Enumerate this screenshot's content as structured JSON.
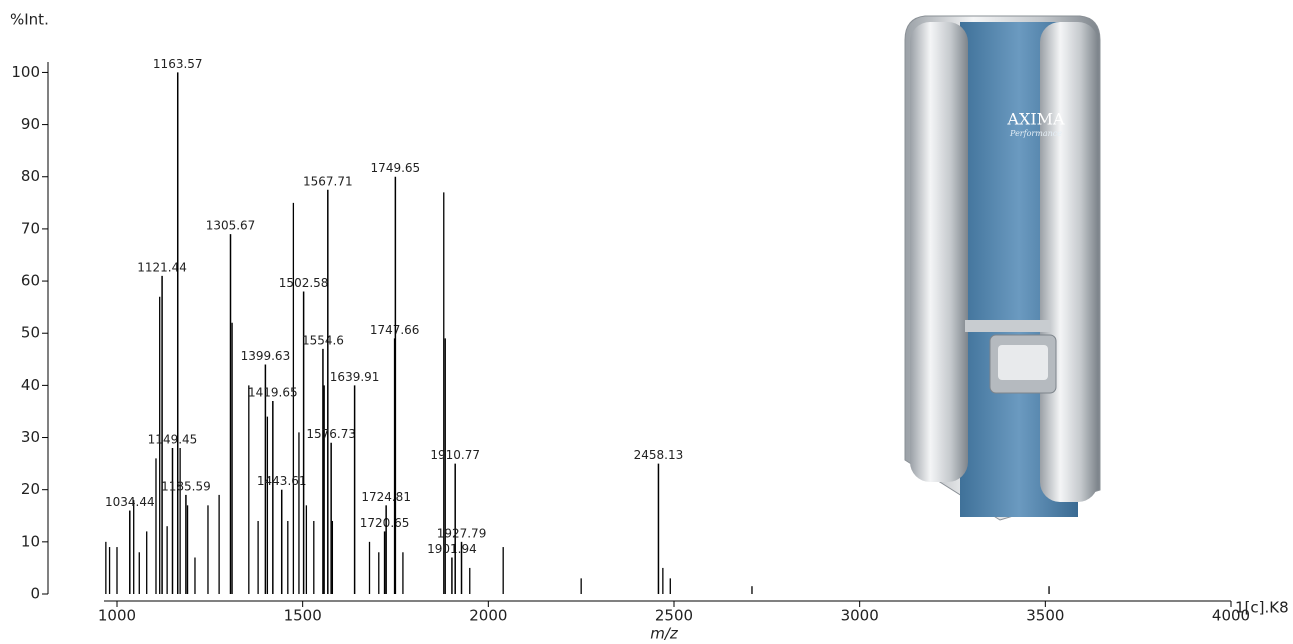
{
  "chart_data": {
    "type": "spectrum",
    "ylabel": "%Int.",
    "xlabel": "m/z",
    "annotation": "1[c].K8",
    "x": [
      1034.44,
      1121.44,
      1149.45,
      1163.57,
      1185.59,
      1305.67,
      1399.63,
      1419.65,
      1443.61,
      1502.58,
      1554.6,
      1567.71,
      1576.73,
      1639.91,
      1720.65,
      1724.81,
      1747.66,
      1749.65,
      1901.94,
      1910.77,
      1927.79,
      2458.13
    ],
    "values": [
      16,
      61,
      28,
      100,
      19,
      69,
      44,
      37,
      20,
      58,
      47,
      77.5,
      29,
      40,
      12,
      17,
      49,
      80,
      7,
      25,
      10,
      25
    ],
    "minor_peaks": {
      "x": [
        970,
        980,
        1000,
        1045,
        1060,
        1080,
        1105,
        1115,
        1135,
        1170,
        1190,
        1210,
        1245,
        1275,
        1310,
        1355,
        1380,
        1405,
        1460,
        1475,
        1490,
        1510,
        1530,
        1558,
        1580,
        1680,
        1705,
        1770,
        1880,
        1884,
        1950,
        2040,
        2250,
        2470,
        2490,
        2710,
        3510
      ],
      "values": [
        10,
        9,
        9,
        18,
        8,
        12,
        26,
        57,
        13,
        28,
        17,
        7,
        17,
        19,
        52,
        40,
        14,
        34,
        14,
        75,
        31,
        17,
        14,
        40,
        14,
        10,
        8,
        8,
        77,
        49,
        5,
        9,
        3,
        5,
        3,
        1.5,
        1.5
      ]
    },
    "color": "#000000",
    "xlim": [
      965,
      4000
    ],
    "xticks": [
      1000,
      1500,
      2000,
      2500,
      3000,
      3500,
      4000
    ],
    "ylim": [
      0,
      102
    ],
    "yticks": [
      0,
      10,
      20,
      30,
      40,
      50,
      60,
      70,
      80,
      90,
      100
    ]
  },
  "instrument": {
    "brand": "AXIMA",
    "model": "Performance"
  }
}
